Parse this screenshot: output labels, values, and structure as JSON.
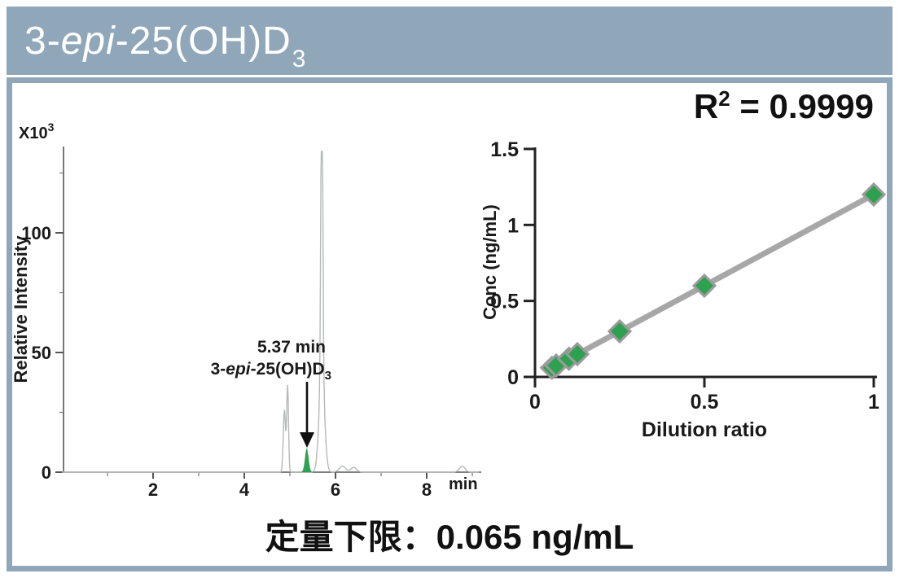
{
  "header": {
    "title_prefix": "3-",
    "title_italic": "epi",
    "title_mid": "-25(OH)D",
    "title_sub": "3"
  },
  "r2": {
    "prefix": "R",
    "sup": "2",
    "rest": " = 0.9999"
  },
  "footer": {
    "lloq": "定量下限：0.065 ng/mL"
  },
  "colors": {
    "frame": "#90a7ba",
    "analyte_green": "#2ea150",
    "fit_line_gray": "#a7a7a7",
    "trace_gray": "#b5b9b9",
    "diamond_stroke": "#9b9b9b"
  },
  "chart_data": [
    {
      "id": "chromatogram",
      "type": "line",
      "ylabel": "Relative Intensity",
      "y_scale_base": "X10",
      "y_scale_exp": "3",
      "x_unit": "min",
      "xlim": [
        0,
        9.2
      ],
      "ylim": [
        0,
        136
      ],
      "xticks_major": [
        2,
        4,
        6,
        8
      ],
      "xticks_minor": [
        1,
        3,
        5,
        7,
        9
      ],
      "yticks_major": [
        0,
        50,
        100
      ],
      "yticks_minor": [
        25,
        75,
        125
      ],
      "peaks": [
        {
          "time": 4.88,
          "height": 26,
          "sigma": 0.035
        },
        {
          "time": 4.95,
          "height": 36,
          "sigma": 0.028
        },
        {
          "time": 5.37,
          "height": 10,
          "sigma": 0.055,
          "analyte": true
        },
        {
          "time": 5.7,
          "height": 134,
          "sigma": 0.03
        },
        {
          "time": 5.7,
          "height": 40,
          "sigma": 0.085
        },
        {
          "time": 6.15,
          "height": 2.5,
          "sigma": 0.1
        },
        {
          "time": 6.4,
          "height": 2.0,
          "sigma": 0.09
        },
        {
          "time": 8.78,
          "height": 2.5,
          "sigma": 0.09
        }
      ],
      "annotation": {
        "line1": "5.37 min",
        "line2_prefix": "3-",
        "line2_italic": "epi",
        "line2_mid": "-25(OH)D",
        "line2_sub": "3"
      }
    },
    {
      "id": "calibration-curve",
      "type": "scatter",
      "xlabel": "Dilution ratio",
      "ylabel": "Conc (ng/mL)",
      "r_squared": "0.9999",
      "xlim": [
        0,
        1.05
      ],
      "ylim": [
        0,
        1.5
      ],
      "xticks": [
        0,
        0.5,
        1
      ],
      "yticks": [
        0,
        0.5,
        1,
        1.5
      ],
      "x": [
        0.05,
        0.0625,
        0.1,
        0.125,
        0.25,
        0.5,
        1.0
      ],
      "y": [
        0.06,
        0.075,
        0.12,
        0.15,
        0.3,
        0.6,
        1.2
      ],
      "fit_line": {
        "x1": 0.035,
        "y1": 0.042,
        "x2": 1.0,
        "y2": 1.2
      }
    }
  ]
}
